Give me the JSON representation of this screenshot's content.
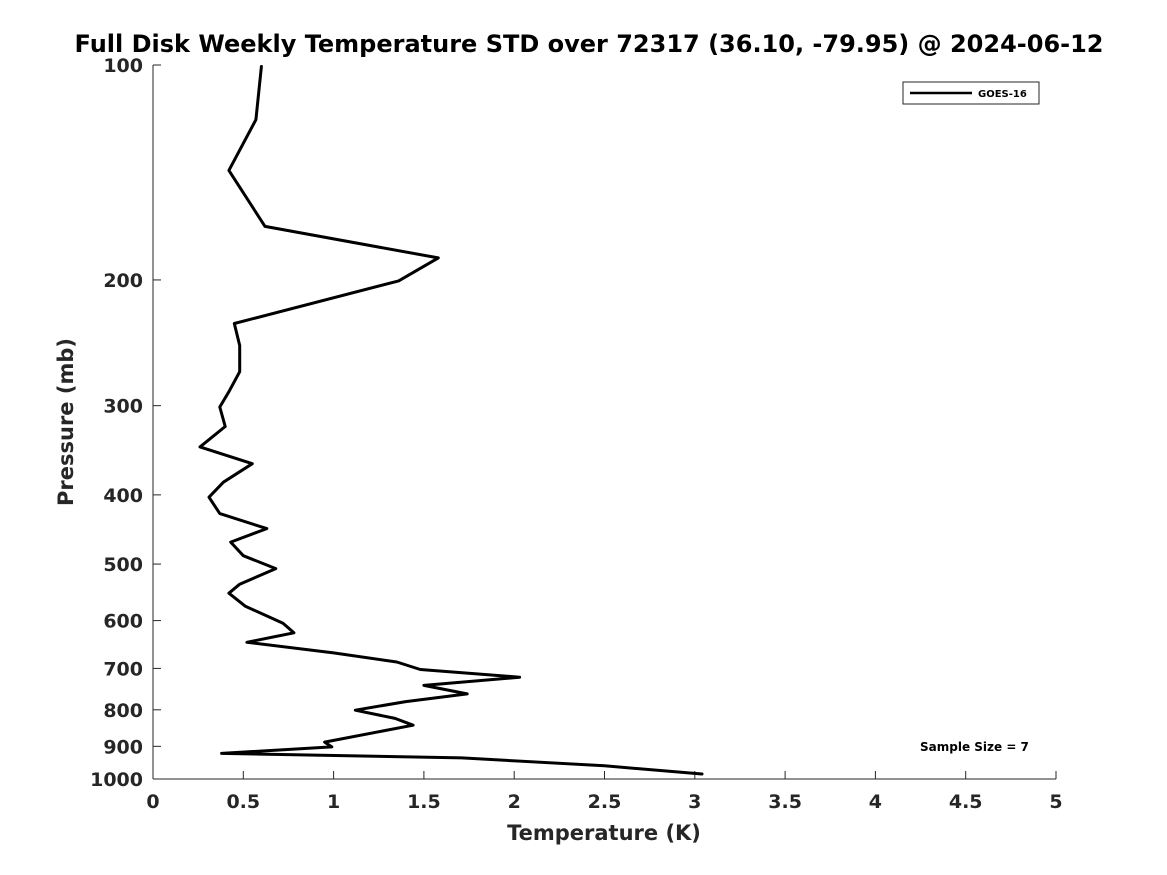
{
  "chart_data": {
    "type": "line",
    "title": "Full Disk Weekly Temperature STD over 72317 (36.10, -79.95) @ 2024-06-12",
    "xlabel": "Temperature (K)",
    "ylabel": "Pressure (mb)",
    "xlim": [
      0,
      5
    ],
    "ylim": [
      100,
      1000
    ],
    "y_scale": "log",
    "y_reversed": true,
    "xticks": [
      0,
      0.5,
      1,
      1.5,
      2,
      2.5,
      3,
      3.5,
      4,
      4.5,
      5
    ],
    "xtick_labels": [
      "0",
      "0.5",
      "1",
      "1.5",
      "2",
      "2.5",
      "3",
      "3.5",
      "4",
      "4.5",
      "5"
    ],
    "yticks": [
      100,
      200,
      300,
      400,
      500,
      600,
      700,
      800,
      900,
      1000
    ],
    "ytick_labels": [
      "100",
      "200",
      "300",
      "400",
      "500",
      "600",
      "700",
      "800",
      "900",
      "1000"
    ],
    "grid": false,
    "legend_position": "top-right",
    "annotation": "Sample Size = 7",
    "series": [
      {
        "name": "GOES-16",
        "color": "#000000",
        "points": [
          [
            0.6,
            100.5
          ],
          [
            0.57,
            119.3
          ],
          [
            0.42,
            140.5
          ],
          [
            0.62,
            168.3
          ],
          [
            1.58,
            186.3
          ],
          [
            1.36,
            200.6
          ],
          [
            0.45,
            230.2
          ],
          [
            0.48,
            247.1
          ],
          [
            0.48,
            268.9
          ],
          [
            0.42,
            286.8
          ],
          [
            0.37,
            301.3
          ],
          [
            0.4,
            320.8
          ],
          [
            0.26,
            342.7
          ],
          [
            0.55,
            361.8
          ],
          [
            0.39,
            384.0
          ],
          [
            0.31,
            403.0
          ],
          [
            0.37,
            424.9
          ],
          [
            0.63,
            445.9
          ],
          [
            0.43,
            465.8
          ],
          [
            0.5,
            486.7
          ],
          [
            0.68,
            507.3
          ],
          [
            0.48,
            533.6
          ],
          [
            0.42,
            549.2
          ],
          [
            0.51,
            572.6
          ],
          [
            0.72,
            605.3
          ],
          [
            0.78,
            624.1
          ],
          [
            0.52,
            643.5
          ],
          [
            1.0,
            665.8
          ],
          [
            1.35,
            685.6
          ],
          [
            1.48,
            702.6
          ],
          [
            2.03,
            720.1
          ],
          [
            1.5,
            739.5
          ],
          [
            1.74,
            760.0
          ],
          [
            1.4,
            779.1
          ],
          [
            1.12,
            801.0
          ],
          [
            1.34,
            822.4
          ],
          [
            1.44,
            840.6
          ],
          [
            0.95,
            887.8
          ],
          [
            0.99,
            901.7
          ],
          [
            0.38,
            920.9
          ],
          [
            1.71,
            934.2
          ],
          [
            2.5,
            958.4
          ],
          [
            3.04,
            984.1
          ]
        ]
      }
    ]
  }
}
